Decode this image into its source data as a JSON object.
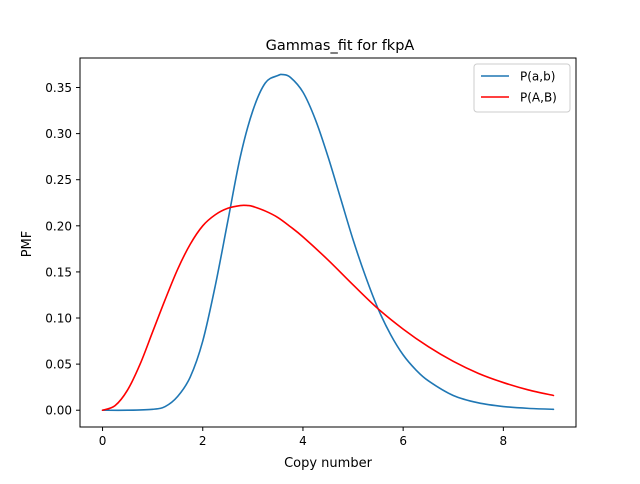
{
  "chart_data": {
    "type": "line",
    "title": "Gammas_fit for fkpA",
    "xlabel": "Copy number",
    "ylabel": "PMF",
    "xlim": [
      -0.45,
      9.45
    ],
    "ylim": [
      -0.0182,
      0.382
    ],
    "xticks": [
      0,
      2,
      4,
      6,
      8
    ],
    "xtick_labels": [
      "0",
      "2",
      "4",
      "6",
      "8"
    ],
    "yticks": [
      0.0,
      0.05,
      0.1,
      0.15,
      0.2,
      0.25,
      0.3,
      0.35
    ],
    "ytick_labels": [
      "0.00",
      "0.05",
      "0.10",
      "0.15",
      "0.20",
      "0.25",
      "0.30",
      "0.35"
    ],
    "grid": false,
    "legend_position": "upper right",
    "series": [
      {
        "name": "P(a,b)",
        "color": "#1f77b4",
        "x": [
          0,
          0.5,
          1.0,
          1.25,
          1.5,
          1.75,
          2.0,
          2.25,
          2.5,
          2.75,
          3.0,
          3.25,
          3.5,
          3.6,
          3.75,
          4.0,
          4.25,
          4.5,
          4.75,
          5.0,
          5.25,
          5.5,
          5.75,
          6.0,
          6.25,
          6.5,
          7.0,
          7.5,
          8.0,
          8.5,
          9.0
        ],
        "y": [
          0.0,
          0.0,
          0.001,
          0.004,
          0.015,
          0.036,
          0.075,
          0.135,
          0.205,
          0.275,
          0.325,
          0.355,
          0.363,
          0.364,
          0.361,
          0.345,
          0.315,
          0.275,
          0.23,
          0.185,
          0.145,
          0.11,
          0.082,
          0.06,
          0.044,
          0.032,
          0.016,
          0.008,
          0.004,
          0.002,
          0.001
        ]
      },
      {
        "name": "P(A,B)",
        "color": "#ff0000",
        "x": [
          0,
          0.25,
          0.5,
          0.75,
          1.0,
          1.25,
          1.5,
          1.75,
          2.0,
          2.25,
          2.5,
          2.75,
          2.9,
          3.0,
          3.25,
          3.5,
          3.75,
          4.0,
          4.5,
          5.0,
          5.5,
          6.0,
          6.5,
          7.0,
          7.5,
          8.0,
          8.5,
          9.0
        ],
        "y": [
          0.0,
          0.005,
          0.022,
          0.05,
          0.085,
          0.12,
          0.153,
          0.18,
          0.2,
          0.212,
          0.219,
          0.222,
          0.222,
          0.221,
          0.216,
          0.209,
          0.199,
          0.188,
          0.163,
          0.136,
          0.11,
          0.088,
          0.069,
          0.053,
          0.04,
          0.03,
          0.022,
          0.016
        ]
      }
    ]
  }
}
